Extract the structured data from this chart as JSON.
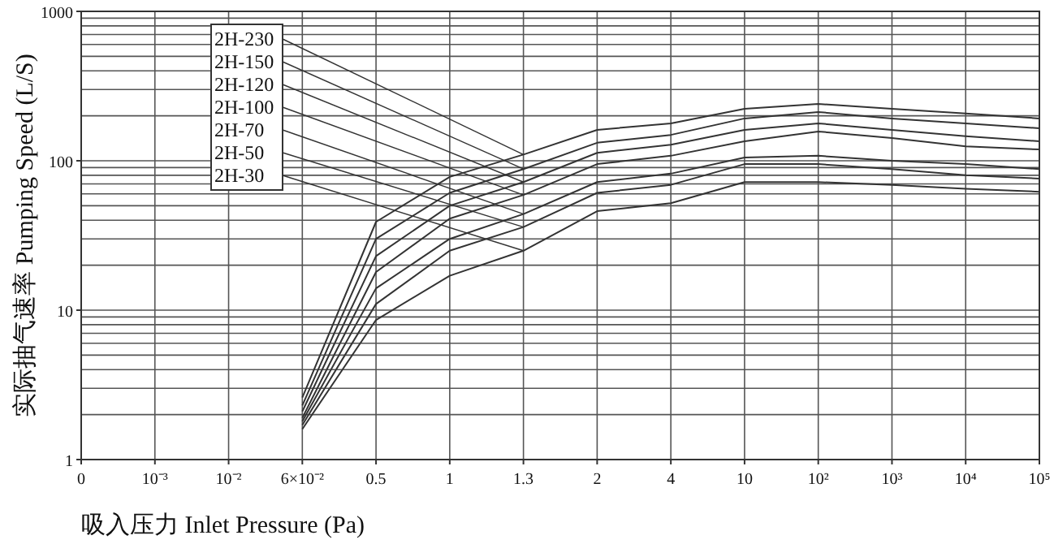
{
  "chart_data": {
    "type": "line",
    "xlabel": "吸入压力  Inlet Pressure (Pa)",
    "ylabel": "实际抽气速率  Pumping Speed (L/S)",
    "categories": [
      "0",
      "10⁻³",
      "10⁻²",
      "6×10⁻²",
      "0.5",
      "1",
      "1.3",
      "2",
      "4",
      "10",
      "10²",
      "10³",
      "10⁴",
      "10⁵"
    ],
    "ylim": [
      1,
      1000
    ],
    "yticks": [
      1,
      10,
      100,
      1000
    ],
    "log": "y",
    "grid": true,
    "legend": "top left",
    "marker": "none",
    "line_style": "solid",
    "series": [
      {
        "name": "2H-230",
        "color": "#333333",
        "values": [
          null,
          null,
          null,
          2.6,
          39,
          78,
          110,
          161,
          178,
          223,
          240,
          223,
          207,
          192
        ]
      },
      {
        "name": "2H-150",
        "color": "#333333",
        "values": [
          null,
          null,
          null,
          2.3,
          30,
          61,
          88,
          132,
          149,
          192,
          212,
          192,
          178,
          165
        ]
      },
      {
        "name": "2H-120",
        "color": "#333333",
        "values": [
          null,
          null,
          null,
          2.1,
          23,
          50,
          72,
          113,
          128,
          161,
          178,
          161,
          146,
          135
        ]
      },
      {
        "name": "2H-100",
        "color": "#333333",
        "values": [
          null,
          null,
          null,
          1.9,
          18,
          41,
          59,
          95,
          108,
          135,
          157,
          142,
          125,
          119
        ]
      },
      {
        "name": "2H-70",
        "color": "#333333",
        "values": [
          null,
          null,
          null,
          1.8,
          14,
          30,
          44,
          72,
          82,
          105,
          108,
          100,
          95,
          88
        ]
      },
      {
        "name": "2H-50",
        "color": "#333333",
        "values": [
          null,
          null,
          null,
          1.7,
          11,
          25,
          36,
          61,
          69,
          95,
          95,
          88,
          80,
          76
        ]
      },
      {
        "name": "2H-30",
        "color": "#333333",
        "values": [
          null,
          null,
          null,
          1.6,
          8.6,
          17,
          25,
          46,
          52,
          72,
          72,
          69,
          65,
          62
        ]
      }
    ]
  }
}
